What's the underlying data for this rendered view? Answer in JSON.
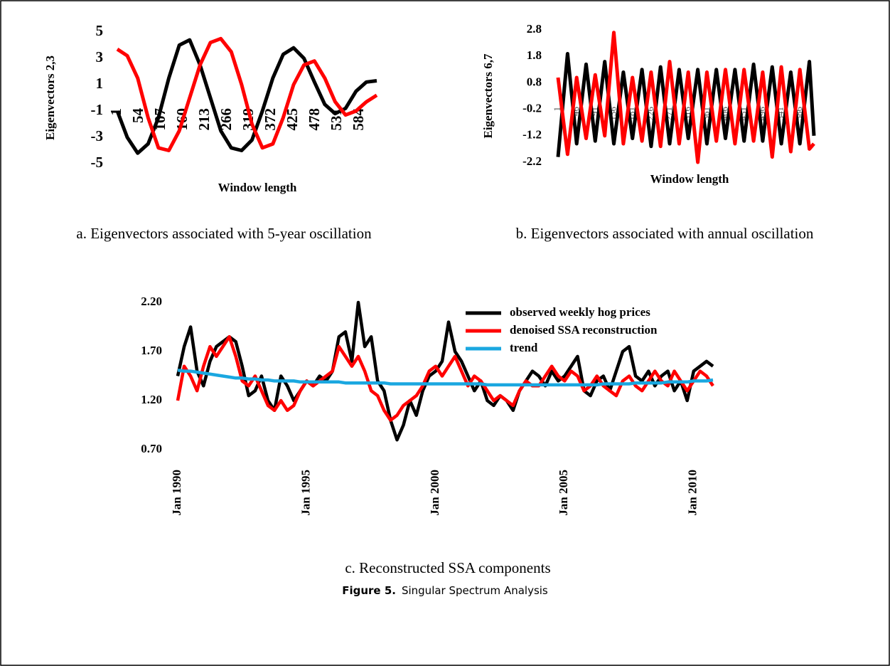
{
  "chart_data": [
    {
      "type": "line",
      "caption": "a. Eigenvectors associated with 5-year oscillation",
      "y_label": "Eigenvectors 2,3",
      "x_label": "Window length",
      "x": [
        1,
        25,
        50,
        75,
        100,
        125,
        150,
        175,
        200,
        225,
        250,
        275,
        300,
        325,
        350,
        375,
        400,
        425,
        450,
        475,
        500,
        525,
        550,
        575,
        600,
        625
      ],
      "series": [
        {
          "color": "#000000",
          "values": [
            -1,
            -3,
            -4.2,
            -3.5,
            -1.5,
            1.5,
            4,
            4.4,
            2.5,
            0,
            -2.5,
            -3.8,
            -4,
            -3.2,
            -1,
            1.5,
            3.3,
            3.8,
            3,
            1.2,
            -0.5,
            -1.2,
            -0.8,
            0.5,
            1.2,
            1.3
          ]
        },
        {
          "color": "#ff0000",
          "values": [
            3.7,
            3.2,
            1.5,
            -1.5,
            -3.8,
            -4,
            -2.5,
            0,
            2.5,
            4.2,
            4.5,
            3.5,
            1,
            -2,
            -3.8,
            -3.5,
            -1.5,
            1,
            2.5,
            2.8,
            1.5,
            -0.3,
            -1.3,
            -1,
            -0.3,
            0.2
          ]
        }
      ],
      "xlim": [
        1,
        625
      ],
      "xticks": [
        1,
        54,
        107,
        160,
        213,
        266,
        319,
        372,
        425,
        478,
        531,
        584
      ],
      "ylim": [
        -5,
        5
      ],
      "yticks": [
        -5,
        -3,
        -1,
        1,
        3,
        5
      ]
    },
    {
      "type": "line",
      "caption": "b. Eigenvectors associated with annual oscillation",
      "y_label": "Eigenvectors 6,7",
      "x_label": "Window length",
      "x": [
        1,
        24,
        46,
        69,
        91,
        114,
        136,
        159,
        181,
        204,
        226,
        249,
        271,
        294,
        316,
        339,
        361,
        384,
        406,
        429,
        451,
        474,
        496,
        519,
        541,
        564,
        586,
        609,
        620
      ],
      "series": [
        {
          "color": "#000000",
          "values": [
            -2.0,
            1.9,
            -1.5,
            1.5,
            -1.4,
            1.6,
            -1.5,
            1.2,
            -1.3,
            1.3,
            -1.6,
            1.4,
            -1.5,
            1.3,
            -1.3,
            1.3,
            -1.5,
            1.3,
            -1.3,
            1.3,
            -1.4,
            1.5,
            -1.4,
            1.4,
            -1.5,
            1.2,
            -1.5,
            1.6,
            -1.2
          ]
        },
        {
          "color": "#ff0000",
          "values": [
            1.0,
            -1.9,
            1.0,
            -1.3,
            1.1,
            -1.2,
            2.7,
            -1.5,
            1.0,
            -1.4,
            1.2,
            -1.6,
            1.6,
            -1.5,
            1.2,
            -2.2,
            1.2,
            -1.4,
            1.3,
            -1.5,
            1.3,
            -1.4,
            1.2,
            -2.0,
            1.4,
            -1.8,
            1.3,
            -1.7,
            -1.5
          ]
        }
      ],
      "xlim": [
        1,
        620
      ],
      "xticks": [
        1,
        46,
        91,
        136,
        181,
        226,
        271,
        316,
        361,
        406,
        451,
        496,
        541,
        586
      ],
      "ylim": [
        -2.2,
        2.8
      ],
      "yticks": [
        -2.2,
        -1.2,
        -0.2,
        0.8,
        1.8,
        2.8
      ]
    },
    {
      "type": "line",
      "caption": "c. Reconstructed SSA components",
      "legend": "upper right",
      "x": [
        1990,
        1990.25,
        1990.5,
        1990.75,
        1991,
        1991.25,
        1991.5,
        1991.75,
        1992,
        1992.25,
        1992.5,
        1992.75,
        1993,
        1993.25,
        1993.5,
        1993.75,
        1994,
        1994.25,
        1994.5,
        1994.75,
        1995,
        1995.25,
        1995.5,
        1995.75,
        1996,
        1996.25,
        1996.5,
        1996.75,
        1997,
        1997.25,
        1997.5,
        1997.75,
        1998,
        1998.25,
        1998.5,
        1998.75,
        1999,
        1999.25,
        1999.5,
        1999.75,
        2000,
        2000.25,
        2000.5,
        2000.75,
        2001,
        2001.25,
        2001.5,
        2001.75,
        2002,
        2002.25,
        2002.5,
        2002.75,
        2003,
        2003.25,
        2003.5,
        2003.75,
        2004,
        2004.25,
        2004.5,
        2004.75,
        2005,
        2005.25,
        2005.5,
        2005.75,
        2006,
        2006.25,
        2006.5,
        2006.75,
        2007,
        2007.25,
        2007.5,
        2007.75,
        2008,
        2008.25,
        2008.5,
        2008.75,
        2009,
        2009.25,
        2009.5,
        2009.75,
        2010,
        2010.25,
        2010.5,
        2010.75
      ],
      "series": [
        {
          "name": "observed  weekly hog prices",
          "color": "#000000",
          "values": [
            1.45,
            1.75,
            1.95,
            1.5,
            1.35,
            1.6,
            1.75,
            1.8,
            1.85,
            1.8,
            1.55,
            1.25,
            1.3,
            1.45,
            1.2,
            1.1,
            1.45,
            1.35,
            1.2,
            1.3,
            1.4,
            1.35,
            1.45,
            1.4,
            1.5,
            1.85,
            1.9,
            1.6,
            2.2,
            1.75,
            1.85,
            1.4,
            1.3,
            1.0,
            0.8,
            0.95,
            1.2,
            1.05,
            1.3,
            1.45,
            1.5,
            1.6,
            2.0,
            1.7,
            1.6,
            1.45,
            1.3,
            1.4,
            1.2,
            1.15,
            1.25,
            1.2,
            1.1,
            1.3,
            1.4,
            1.5,
            1.45,
            1.35,
            1.5,
            1.4,
            1.45,
            1.55,
            1.65,
            1.3,
            1.25,
            1.4,
            1.45,
            1.3,
            1.5,
            1.7,
            1.75,
            1.45,
            1.4,
            1.5,
            1.35,
            1.45,
            1.5,
            1.3,
            1.4,
            1.2,
            1.5,
            1.55,
            1.6,
            1.55
          ]
        },
        {
          "name": "denoised SSA reconstruction",
          "color": "#ff0000",
          "values": [
            1.2,
            1.55,
            1.45,
            1.3,
            1.55,
            1.75,
            1.65,
            1.75,
            1.85,
            1.65,
            1.4,
            1.35,
            1.45,
            1.3,
            1.15,
            1.1,
            1.2,
            1.1,
            1.15,
            1.3,
            1.4,
            1.35,
            1.4,
            1.45,
            1.5,
            1.75,
            1.65,
            1.55,
            1.65,
            1.5,
            1.3,
            1.25,
            1.1,
            1.0,
            1.05,
            1.15,
            1.2,
            1.25,
            1.35,
            1.5,
            1.55,
            1.45,
            1.55,
            1.65,
            1.5,
            1.35,
            1.45,
            1.4,
            1.3,
            1.2,
            1.25,
            1.2,
            1.15,
            1.3,
            1.4,
            1.35,
            1.35,
            1.45,
            1.55,
            1.45,
            1.4,
            1.5,
            1.45,
            1.3,
            1.35,
            1.45,
            1.35,
            1.3,
            1.25,
            1.4,
            1.45,
            1.35,
            1.3,
            1.4,
            1.5,
            1.4,
            1.35,
            1.5,
            1.4,
            1.3,
            1.4,
            1.5,
            1.45,
            1.35
          ]
        },
        {
          "name": "trend",
          "color": "#1aa7e0",
          "values": [
            1.51,
            1.5,
            1.5,
            1.49,
            1.48,
            1.47,
            1.46,
            1.45,
            1.44,
            1.43,
            1.43,
            1.42,
            1.42,
            1.41,
            1.41,
            1.4,
            1.4,
            1.4,
            1.4,
            1.39,
            1.39,
            1.39,
            1.39,
            1.39,
            1.39,
            1.39,
            1.38,
            1.38,
            1.38,
            1.38,
            1.38,
            1.38,
            1.38,
            1.37,
            1.37,
            1.37,
            1.37,
            1.37,
            1.37,
            1.37,
            1.37,
            1.37,
            1.37,
            1.37,
            1.37,
            1.37,
            1.37,
            1.37,
            1.36,
            1.36,
            1.36,
            1.36,
            1.36,
            1.36,
            1.36,
            1.36,
            1.36,
            1.36,
            1.36,
            1.36,
            1.36,
            1.36,
            1.36,
            1.36,
            1.36,
            1.36,
            1.37,
            1.37,
            1.37,
            1.37,
            1.37,
            1.38,
            1.38,
            1.38,
            1.38,
            1.38,
            1.39,
            1.39,
            1.39,
            1.39,
            1.4,
            1.4,
            1.4,
            1.41
          ]
        }
      ],
      "xlim": [
        1990,
        2010.75
      ],
      "xticks": [
        {
          "value": 1990,
          "label": "Jan 1990"
        },
        {
          "value": 1995,
          "label": "Jan 1995"
        },
        {
          "value": 2000,
          "label": "Jan 2000"
        },
        {
          "value": 2005,
          "label": "Jan 2005"
        },
        {
          "value": 2010,
          "label": "Jan 2010"
        }
      ],
      "ylim": [
        0.7,
        2.2
      ],
      "yticks": [
        {
          "value": 0.7,
          "label": "0.70"
        },
        {
          "value": 1.2,
          "label": "1.20"
        },
        {
          "value": 1.7,
          "label": "1.70"
        },
        {
          "value": 2.2,
          "label": "2.20"
        }
      ]
    }
  ],
  "figure": {
    "label": "Figure 5.",
    "title": "Singular Spectrum Analysis"
  }
}
